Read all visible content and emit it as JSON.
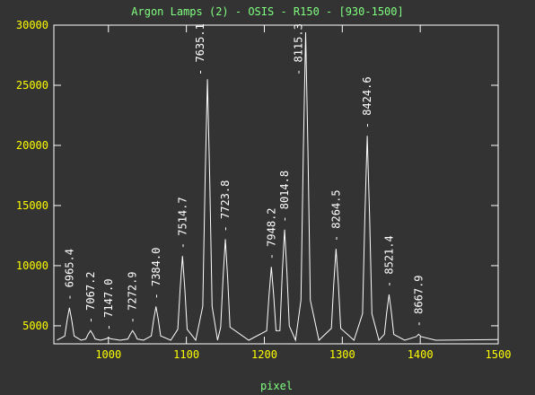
{
  "chart_data": {
    "type": "line",
    "title": "Argon Lamps (2) - OSIS - R150 - [930-1500]",
    "x_label": "pixel",
    "xlim": [
      930,
      1500
    ],
    "ylim": [
      3500,
      30000
    ],
    "xticks": [
      1000,
      1100,
      1200,
      1300,
      1400,
      1500
    ],
    "yticks": [
      5000,
      10000,
      15000,
      20000,
      25000,
      30000
    ],
    "series": [
      {
        "color": "#ffffff",
        "x": [
          934,
          944,
          947,
          950,
          953,
          956,
          965,
          971,
          974,
          977,
          980,
          983,
          990,
          997,
          1000,
          1003,
          1015,
          1025,
          1028,
          1031,
          1034,
          1037,
          1045,
          1055,
          1058,
          1061,
          1064,
          1067,
          1080,
          1089,
          1092,
          1095,
          1098,
          1101,
          1112,
          1121,
          1124,
          1127,
          1130,
          1133,
          1140,
          1144,
          1147,
          1150,
          1153,
          1156,
          1180,
          1203,
          1206,
          1209,
          1212,
          1215,
          1220,
          1223,
          1226,
          1229,
          1232,
          1240,
          1247,
          1250,
          1253,
          1256,
          1259,
          1270,
          1286,
          1289,
          1292,
          1295,
          1298,
          1315,
          1326,
          1329,
          1332,
          1335,
          1338,
          1347,
          1354,
          1357,
          1360,
          1363,
          1366,
          1380,
          1395,
          1398,
          1401,
          1420,
          1500
        ],
        "values": [
          3800,
          4150,
          5450,
          6500,
          5450,
          4150,
          3800,
          3900,
          4290,
          4600,
          4290,
          3900,
          3800,
          3920,
          4000,
          3920,
          3800,
          3900,
          4290,
          4600,
          4290,
          3900,
          3800,
          4160,
          5510,
          6600,
          5510,
          4160,
          3800,
          4710,
          8070,
          10800,
          8070,
          4710,
          3800,
          6620,
          17040,
          25500,
          17040,
          6620,
          3800,
          4890,
          8920,
          12200,
          8920,
          4890,
          3800,
          4590,
          7520,
          9900,
          7520,
          4590,
          4600,
          9410,
          13000,
          9410,
          4990,
          3800,
          7130,
          19420,
          29400,
          19420,
          7130,
          3800,
          4790,
          8440,
          11400,
          8440,
          4790,
          3800,
          6010,
          14170,
          20800,
          14170,
          6010,
          3800,
          4290,
          6120,
          7600,
          6120,
          4290,
          3800,
          4100,
          4300,
          4100,
          3800,
          3850
        ]
      }
    ],
    "annotations": [
      {
        "text": "- 6965.4",
        "x": 950
      },
      {
        "text": "- 7067.2",
        "x": 977
      },
      {
        "text": "- 7147.0",
        "x": 1000
      },
      {
        "text": "- 7272.9",
        "x": 1031
      },
      {
        "text": "- 7384.0",
        "x": 1061
      },
      {
        "text": "- 7514.7",
        "x": 1095
      },
      {
        "text": "- 7635.1",
        "x": 1127
      },
      {
        "text": "- 7723.8",
        "x": 1150
      },
      {
        "text": "- 7948.2",
        "x": 1209
      },
      {
        "text": "- 8014.8",
        "x": 1226
      },
      {
        "text": "- 8115.3",
        "x": 1253
      },
      {
        "text": "- 8264.5",
        "x": 1292
      },
      {
        "text": "- 8424.6",
        "x": 1332
      },
      {
        "text": "- 8521.4",
        "x": 1360
      },
      {
        "text": "- 8667.9",
        "x": 1398
      }
    ]
  }
}
